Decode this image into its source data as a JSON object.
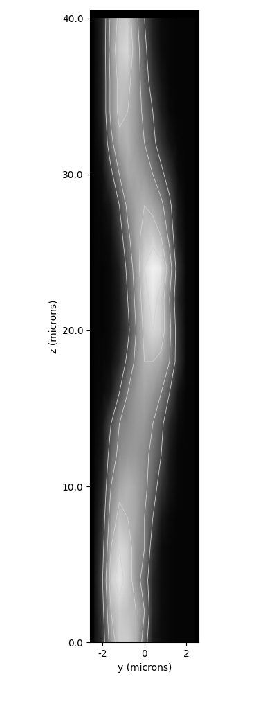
{
  "chart_data": {
    "type": "heatmap",
    "x_label": "y (microns)",
    "y_label": "z (microns)",
    "xlim": [
      -2.6,
      2.6
    ],
    "ylim": [
      0,
      40.5
    ],
    "xticks": [
      -2,
      0,
      2
    ],
    "yticks": [
      {
        "value": 0,
        "label": "0.0"
      },
      {
        "value": 10,
        "label": "10.0"
      },
      {
        "value": 20,
        "label": "20.0"
      },
      {
        "value": 30,
        "label": "30.0"
      },
      {
        "value": 40,
        "label": "40.0"
      }
    ],
    "x": [
      -2.4,
      -2.0,
      -1.6,
      -1.2,
      -0.8,
      -0.4,
      0.0,
      0.4,
      0.8,
      1.2,
      1.6,
      2.0,
      2.4
    ],
    "y": [
      0,
      2,
      4,
      6,
      8,
      10,
      12,
      14,
      16,
      18,
      20,
      22,
      24,
      26,
      28,
      30,
      32,
      34,
      36,
      38,
      40
    ],
    "cells": [
      [
        0.05,
        0.2,
        0.6,
        0.8,
        0.8,
        0.7,
        0.4,
        0.1,
        0.05,
        0.03,
        0.02,
        0.02,
        0.02
      ],
      [
        0.05,
        0.25,
        0.7,
        0.8,
        0.75,
        0.7,
        0.5,
        0.15,
        0.05,
        0.03,
        0.02,
        0.02,
        0.02
      ],
      [
        0.05,
        0.3,
        0.8,
        0.9,
        0.8,
        0.6,
        0.4,
        0.15,
        0.05,
        0.03,
        0.02,
        0.02,
        0.02
      ],
      [
        0.05,
        0.25,
        0.7,
        0.85,
        0.8,
        0.6,
        0.5,
        0.2,
        0.05,
        0.03,
        0.02,
        0.02,
        0.02
      ],
      [
        0.04,
        0.2,
        0.6,
        0.75,
        0.7,
        0.65,
        0.5,
        0.3,
        0.1,
        0.04,
        0.02,
        0.02,
        0.02
      ],
      [
        0.03,
        0.15,
        0.5,
        0.65,
        0.7,
        0.65,
        0.55,
        0.4,
        0.2,
        0.08,
        0.03,
        0.02,
        0.02
      ],
      [
        0.03,
        0.1,
        0.4,
        0.55,
        0.6,
        0.6,
        0.55,
        0.45,
        0.3,
        0.1,
        0.03,
        0.02,
        0.02
      ],
      [
        0.02,
        0.08,
        0.3,
        0.5,
        0.55,
        0.6,
        0.6,
        0.5,
        0.35,
        0.15,
        0.05,
        0.02,
        0.02
      ],
      [
        0.02,
        0.04,
        0.1,
        0.3,
        0.5,
        0.6,
        0.65,
        0.6,
        0.5,
        0.3,
        0.08,
        0.02,
        0.02
      ],
      [
        0.02,
        0.03,
        0.05,
        0.15,
        0.35,
        0.55,
        0.7,
        0.7,
        0.65,
        0.5,
        0.2,
        0.03,
        0.02
      ],
      [
        0.02,
        0.02,
        0.04,
        0.1,
        0.25,
        0.5,
        0.75,
        0.85,
        0.8,
        0.55,
        0.2,
        0.03,
        0.02
      ],
      [
        0.02,
        0.02,
        0.04,
        0.1,
        0.3,
        0.55,
        0.8,
        0.9,
        0.8,
        0.5,
        0.15,
        0.03,
        0.02
      ],
      [
        0.02,
        0.02,
        0.04,
        0.12,
        0.35,
        0.6,
        0.85,
        0.95,
        0.9,
        0.6,
        0.2,
        0.03,
        0.02
      ],
      [
        0.02,
        0.03,
        0.06,
        0.2,
        0.45,
        0.65,
        0.75,
        0.8,
        0.7,
        0.45,
        0.12,
        0.03,
        0.02
      ],
      [
        0.02,
        0.04,
        0.1,
        0.3,
        0.55,
        0.65,
        0.7,
        0.65,
        0.55,
        0.35,
        0.1,
        0.02,
        0.02
      ],
      [
        0.02,
        0.06,
        0.25,
        0.5,
        0.65,
        0.65,
        0.6,
        0.5,
        0.35,
        0.2,
        0.05,
        0.02,
        0.02
      ],
      [
        0.03,
        0.1,
        0.45,
        0.65,
        0.7,
        0.6,
        0.5,
        0.35,
        0.2,
        0.08,
        0.03,
        0.02,
        0.02
      ],
      [
        0.03,
        0.15,
        0.55,
        0.75,
        0.7,
        0.6,
        0.45,
        0.3,
        0.12,
        0.04,
        0.02,
        0.02,
        0.02
      ],
      [
        0.03,
        0.15,
        0.55,
        0.75,
        0.75,
        0.6,
        0.4,
        0.2,
        0.08,
        0.03,
        0.02,
        0.02,
        0.02
      ],
      [
        0.03,
        0.15,
        0.6,
        0.8,
        0.85,
        0.6,
        0.35,
        0.15,
        0.05,
        0.03,
        0.02,
        0.02,
        0.02
      ],
      [
        0.03,
        0.15,
        0.55,
        0.75,
        0.8,
        0.55,
        0.3,
        0.12,
        0.05,
        0.03,
        0.02,
        0.02,
        0.02
      ]
    ],
    "contour_levels": [
      0.3,
      0.5,
      0.7,
      0.85
    ],
    "color": "gray"
  }
}
